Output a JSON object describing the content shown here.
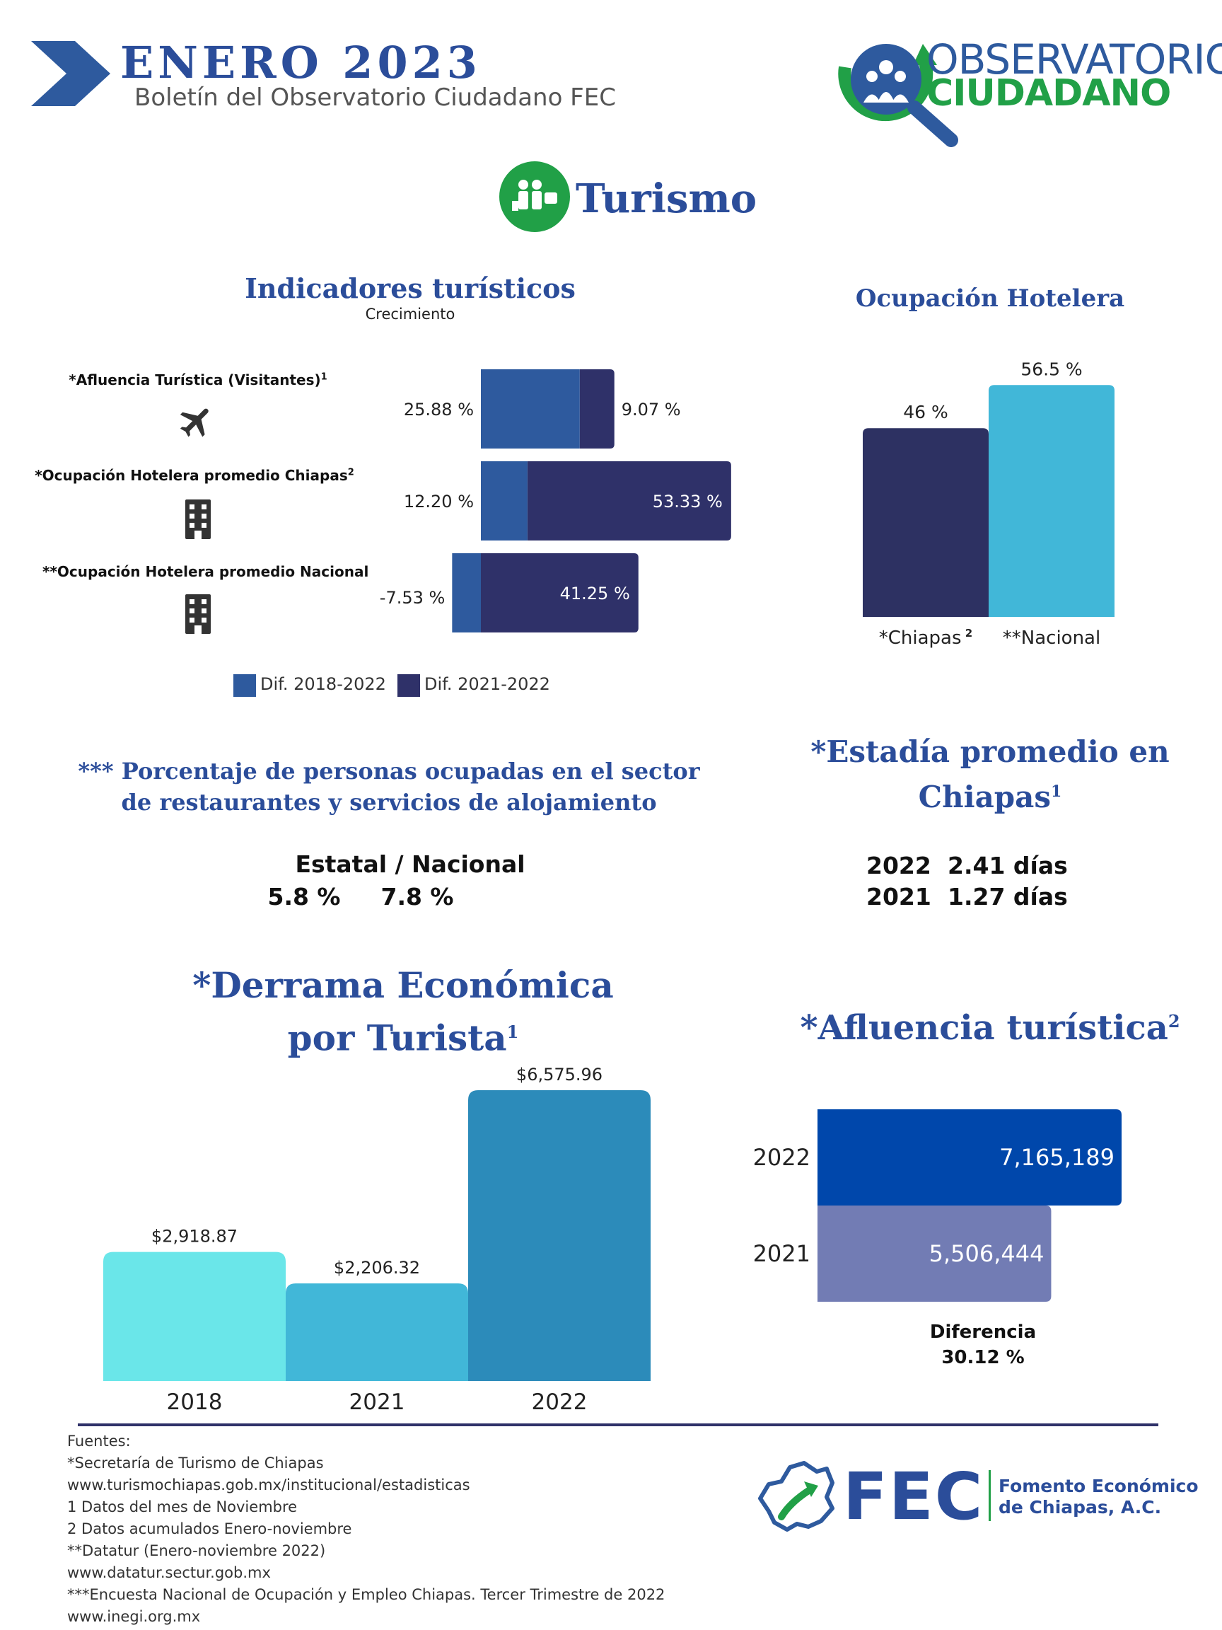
{
  "header": {
    "month_year": "ENERO 2023",
    "subtitle": "Boletín del Observatorio Ciudadano FEC",
    "logo_line1": "OBSERVATORIO",
    "logo_line2": "CIUDADANO",
    "section": "Turismo",
    "colors": {
      "navy": "#2b4d9a",
      "green": "#21a047",
      "accent": "#2e5a9e"
    }
  },
  "indicadores": {
    "title": "Indicadores turísticos",
    "subtitle": "Crecimiento",
    "rows": [
      {
        "label": "*Afluencia Turística (Visitantes)",
        "sup": "1",
        "icon": "airplane-icon"
      },
      {
        "label": "*Ocupación Hotelera promedio Chiapas",
        "sup": "2",
        "icon": "building-icon"
      },
      {
        "label": "**Ocupación Hotelera promedio Nacional",
        "sup": "",
        "icon": "building-icon"
      }
    ],
    "legend": [
      "Dif. 2018-2022",
      "Dif. 2021-2022"
    ]
  },
  "ocupacion": {
    "title": "Ocupación Hotelera"
  },
  "personas": {
    "title_line1": "*** Porcentaje de personas ocupadas en el sector",
    "title_line2": "de restaurantes y servicios de alojamiento",
    "header": "Estatal / Nacional",
    "estatal": "5.8 %",
    "nacional": "7.8 %"
  },
  "estadia": {
    "title_line1": "*Estadía promedio en",
    "title_line2": "Chiapas",
    "sup": "1",
    "rows": [
      {
        "year": "2022",
        "value": "2.41 días"
      },
      {
        "year": "2021",
        "value": "1.27 días"
      }
    ]
  },
  "derrama": {
    "title_line1": "*Derrama Económica",
    "title_line2": "por Turista",
    "sup": "1"
  },
  "afluencia": {
    "title": "*Afluencia turística",
    "sup": "2",
    "diff_label": "Diferencia",
    "diff_value": "30.12 %"
  },
  "sources": {
    "lines": [
      "Fuentes:",
      "*Secretaría de Turismo de Chiapas",
      "www.turismochiapas.gob.mx/institucional/estadisticas",
      "1 Datos del mes de Noviembre",
      "2 Datos acumulados Enero-noviembre",
      "**Datatur (Enero-noviembre 2022)",
      "www.datatur.sectur.gob.mx",
      "***Encuesta Nacional de Ocupación y Empleo Chiapas. Tercer Trimestre de 2022",
      "www.inegi.org.mx"
    ]
  },
  "footer_logo": {
    "short": "FEC",
    "line1": "Fomento Económico",
    "line2": "de Chiapas, A.C."
  },
  "chart_data": [
    {
      "type": "bar",
      "orientation": "horizontal",
      "title": "Indicadores turísticos",
      "subtitle": "Crecimiento",
      "categories": [
        "*Afluencia Turística (Visitantes)",
        "*Ocupación Hotelera promedio Chiapas",
        "**Ocupación Hotelera promedio Nacional"
      ],
      "series": [
        {
          "name": "Dif. 2018-2022",
          "values": [
            25.88,
            12.2,
            -7.53
          ],
          "labels": [
            "25.88 %",
            "12.20 %",
            "-7.53 %"
          ],
          "color": "#2e5a9e"
        },
        {
          "name": "Dif. 2021-2022",
          "values": [
            9.07,
            53.33,
            41.25
          ],
          "labels": [
            "9.07 %",
            "53.33 %",
            "41.25 %"
          ],
          "color": "#2f3169"
        }
      ],
      "stacked": true,
      "legend": "bottom"
    },
    {
      "type": "bar",
      "title": "Ocupación Hotelera",
      "categories": [
        "*Chiapas",
        "**Nacional"
      ],
      "category_sups": [
        "2",
        ""
      ],
      "values": [
        46,
        56.5
      ],
      "labels": [
        "46 %",
        "56.5 %"
      ],
      "colors": [
        "#2d3162",
        "#41b7d8"
      ]
    },
    {
      "type": "bar",
      "title": "*Derrama Económica por Turista",
      "categories": [
        "2018",
        "2021",
        "2022"
      ],
      "values": [
        2918.87,
        2206.32,
        6575.96
      ],
      "labels": [
        "$2,918.87",
        "$2,206.32",
        "$6,575.96"
      ],
      "colors": [
        "#6ae6e9",
        "#41b7d8",
        "#2c8bba"
      ]
    },
    {
      "type": "bar",
      "orientation": "horizontal",
      "title": "*Afluencia turística",
      "categories": [
        "2022",
        "2021"
      ],
      "values": [
        7165189,
        5506444
      ],
      "labels": [
        "7,165,189",
        "5,506,444"
      ],
      "colors": [
        "#0047ab",
        "#727cb4"
      ]
    }
  ]
}
